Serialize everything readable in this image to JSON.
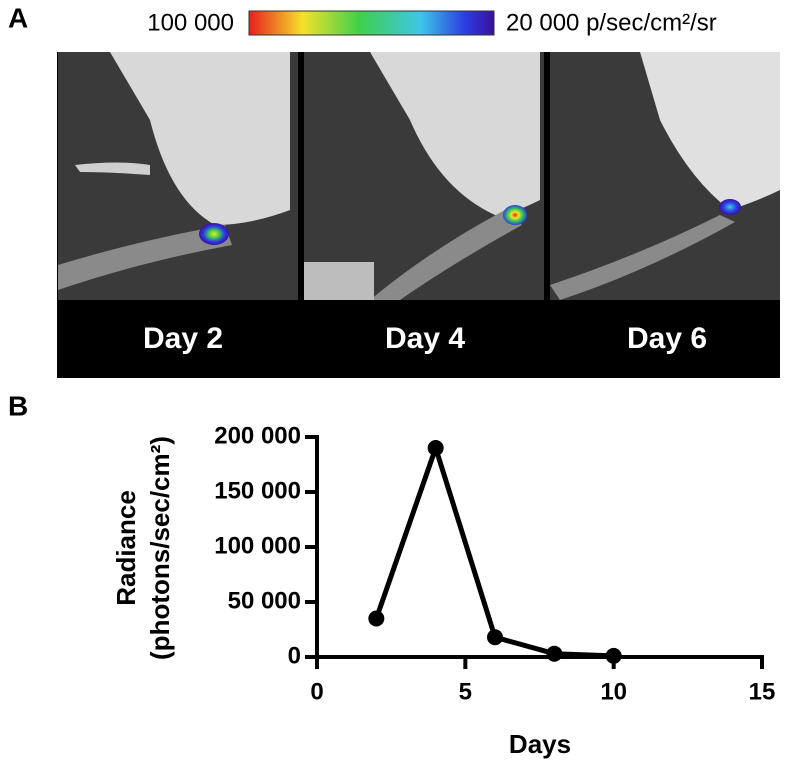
{
  "panel_a": {
    "label": "A",
    "scale_max": "100 000",
    "scale_min": "20 000 p/sec/cm²/sr",
    "images": [
      "Day 2",
      "Day 4",
      "Day 6"
    ]
  },
  "chart_data": {
    "type": "line",
    "panel_label": "B",
    "y_label": "Radiance",
    "y_label_unit": "(photons/sec/cm²)",
    "x_label": "Days",
    "x": [
      2,
      4,
      6,
      8,
      10
    ],
    "series": [
      {
        "color": "#000000",
        "values": [
          35000,
          190000,
          18000,
          3000,
          1000
        ]
      }
    ],
    "xlim": [
      0,
      15
    ],
    "xticks": [
      0,
      5,
      10,
      15
    ],
    "ylim": [
      0,
      200000
    ],
    "yticks": [
      0,
      {
        "value": 50000,
        "label": "50 000"
      },
      {
        "value": 100000,
        "label": "100 000"
      },
      {
        "value": 150000,
        "label": "150 000"
      },
      {
        "value": 200000,
        "label": "200 000"
      }
    ]
  }
}
